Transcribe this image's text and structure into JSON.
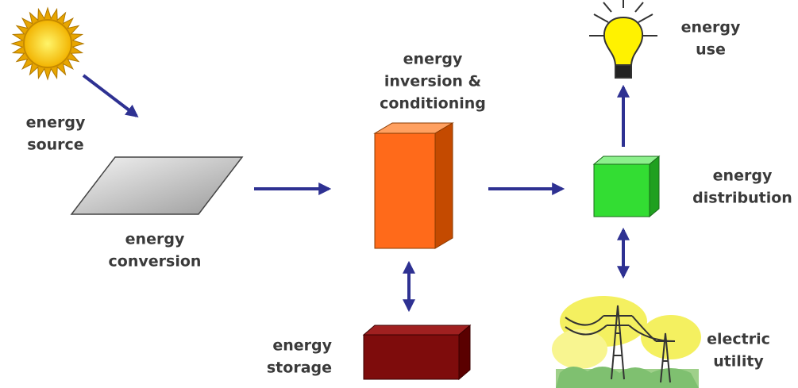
{
  "nodes": [
    {
      "id": "source",
      "label": [
        "energy",
        "source"
      ]
    },
    {
      "id": "conversion",
      "label": [
        "energy",
        "conversion"
      ]
    },
    {
      "id": "inversion",
      "label": [
        "energy",
        "inversion &",
        "conditioning"
      ]
    },
    {
      "id": "storage",
      "label": [
        "energy",
        "storage"
      ]
    },
    {
      "id": "distribution",
      "label": [
        "energy",
        "distribution"
      ]
    },
    {
      "id": "use",
      "label": [
        "energy",
        "use"
      ]
    },
    {
      "id": "utility",
      "label": [
        "electric",
        "utility"
      ]
    }
  ]
}
